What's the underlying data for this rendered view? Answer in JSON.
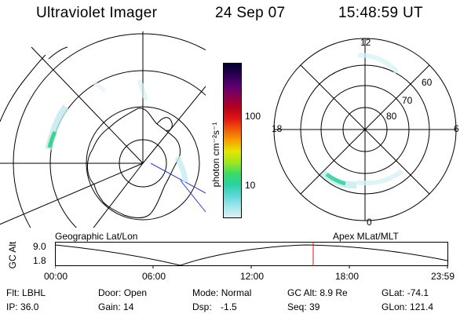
{
  "header": {
    "instrument": "Ultraviolet Imager",
    "date": "24 Sep 07",
    "time": "15:48:59 UT"
  },
  "left_map": {
    "caption": "Geographic Lat/Lon"
  },
  "right_map": {
    "caption": "Apex MLat/MLT",
    "mlt_labels": [
      "12",
      "18",
      "6",
      "0"
    ],
    "lat_labels": [
      "60",
      "70",
      "80"
    ]
  },
  "colorbar": {
    "label": "photon cm⁻²s⁻¹",
    "ticks": [
      "100",
      "10"
    ],
    "colors": [
      "#000033",
      "#2a0050",
      "#5a0070",
      "#8a0050",
      "#b4001e",
      "#e01414",
      "#f05a0a",
      "#f6a000",
      "#e6e600",
      "#9ee61e",
      "#3cdc64",
      "#28d2a0",
      "#5ad7d7",
      "#a0e6eb",
      "#dcf0f4"
    ]
  },
  "altitude_plot": {
    "ylabel": "GC Alt",
    "y_max_label": "9.0",
    "y_min_label": "1.8",
    "x_ticks": [
      "00:00",
      "06:00",
      "12:00",
      "18:00",
      "23:59"
    ],
    "current_marker_time": "15:48:59"
  },
  "info": {
    "filter_label": "Flt:",
    "filter_value": "LBHL",
    "ip_label": "IP:",
    "ip_value": "36.0",
    "door_label": "Door:",
    "door_value": "Open",
    "gain_label": "Gain:",
    "gain_value": "14",
    "mode_label": "Mode:",
    "mode_value": "Normal",
    "dsp_label": "Dsp:",
    "dsp_value": "-1.5",
    "gcalt_label": "GC Alt:",
    "gcalt_value": "8.9 Re",
    "seq_label": "Seq:",
    "seq_value": "39",
    "glat_label": "GLat:",
    "glat_value": "-74.1",
    "glon_label": "GLon:",
    "glon_value": "121.4"
  }
}
